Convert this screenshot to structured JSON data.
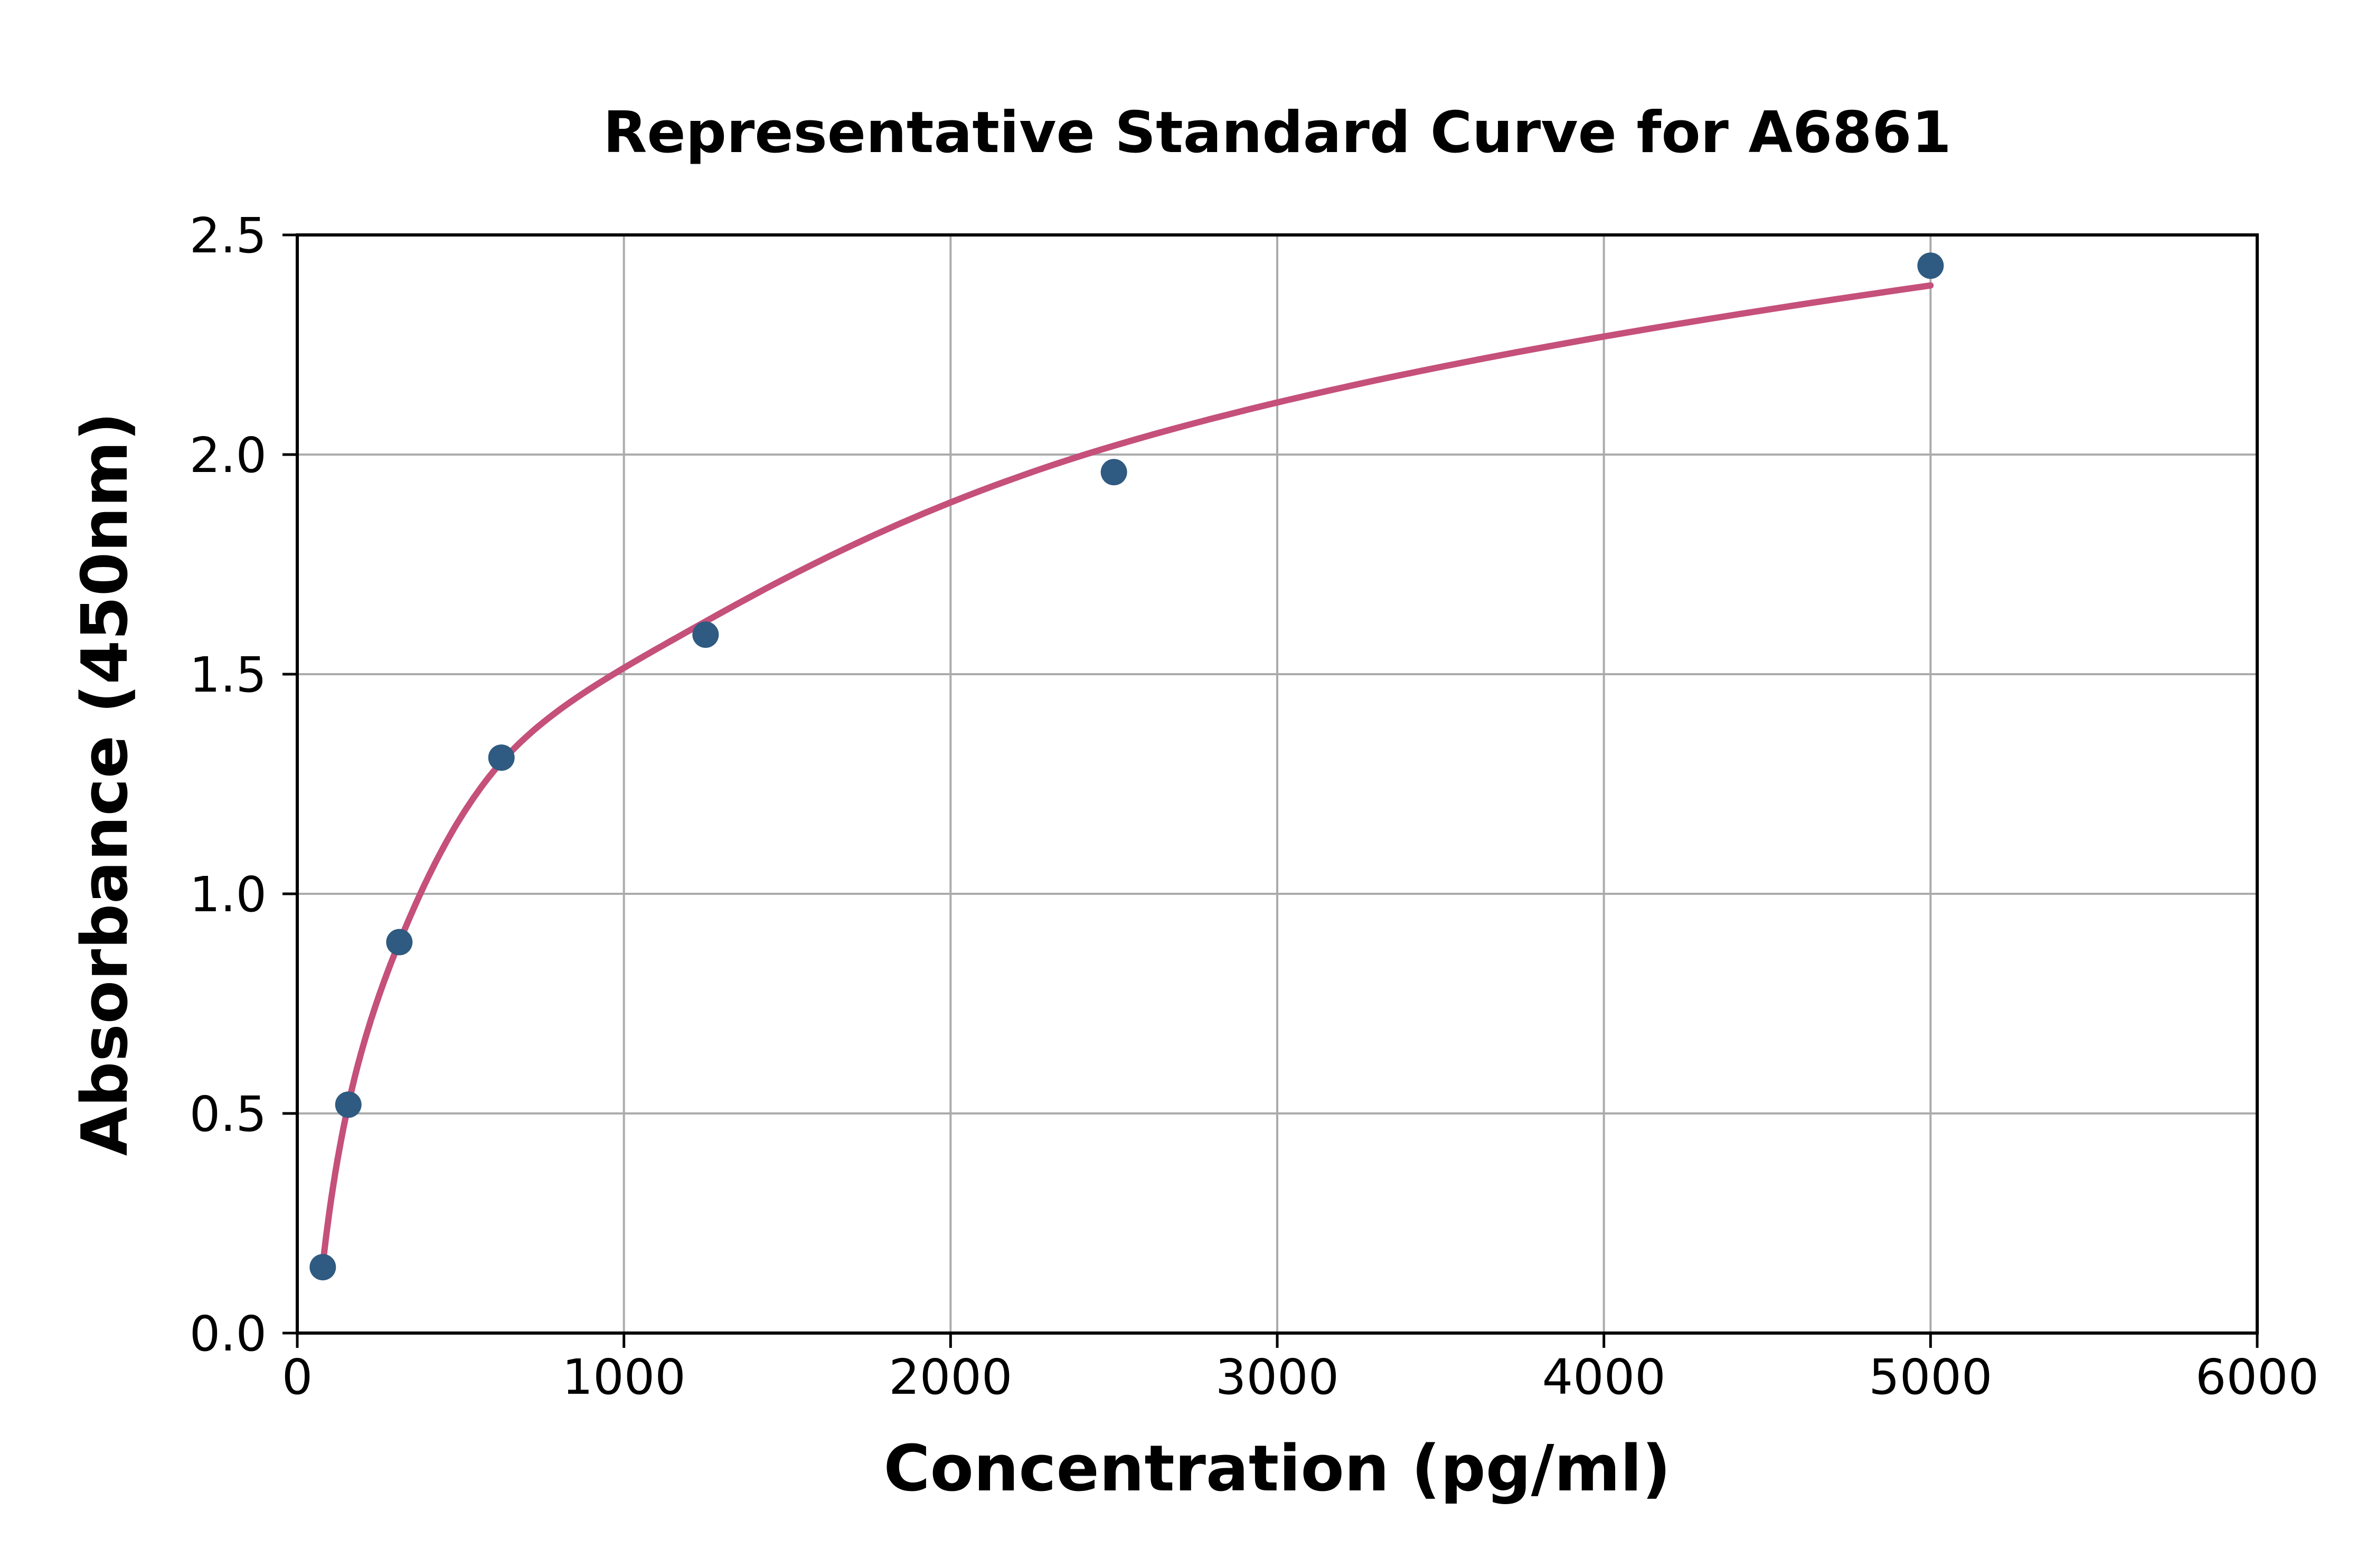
{
  "figure": {
    "background": "#ffffff"
  },
  "chart_data": {
    "type": "scatter",
    "title": "Representative Standard Curve for A6861",
    "xlabel": "Concentration (pg/ml)",
    "ylabel": "Absorbance (450nm)",
    "xlim": [
      0,
      6000
    ],
    "ylim": [
      0,
      2.5
    ],
    "x_ticks": [
      0,
      1000,
      2000,
      3000,
      4000,
      5000,
      6000
    ],
    "x_tick_labels": [
      "0",
      "1000",
      "2000",
      "3000",
      "4000",
      "5000",
      "6000"
    ],
    "y_ticks": [
      0,
      0.5,
      1.0,
      1.5,
      2.0,
      2.5
    ],
    "y_tick_labels": [
      "0.0",
      "0.5",
      "1.0",
      "1.5",
      "2.0",
      "2.5"
    ],
    "grid": true,
    "legend": false,
    "series": [
      {
        "name": "standard-points",
        "type": "scatter",
        "marker": "circle",
        "color": "#2f5a81",
        "x": [
          78.1,
          156.3,
          312.5,
          625,
          1250,
          2500,
          5000
        ],
        "y": [
          0.15,
          0.52,
          0.89,
          1.31,
          1.59,
          1.96,
          2.43
        ]
      },
      {
        "name": "fitted-curve",
        "type": "line",
        "color": "#c5507a",
        "x": [
          78.1,
          156.3,
          312.5,
          625,
          1250,
          2500,
          5000
        ],
        "y": [
          0.155,
          0.52,
          0.89,
          1.3,
          1.62,
          2.02,
          2.385
        ]
      }
    ],
    "colors": {
      "spine": "#000000",
      "grid": "#ababab",
      "text": "#000000",
      "background": "#ffffff"
    }
  }
}
